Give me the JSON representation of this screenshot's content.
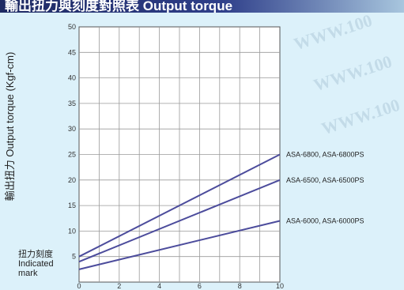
{
  "header": {
    "title": "輸出扭力與刻度對照表 Output torque"
  },
  "watermark": "WWW.100",
  "indicated_mark": {
    "zh": "扭力刻度",
    "en1": "Indicated",
    "en2": "mark"
  },
  "chart_data": {
    "type": "line",
    "title": "",
    "xlabel": "",
    "ylabel": "輸出扭力 Output torque (Kgf-cm)",
    "xlim": [
      0,
      10
    ],
    "ylim": [
      0,
      50
    ],
    "xticks": [
      0,
      2,
      4,
      6,
      8,
      10
    ],
    "yticks": [
      5,
      10,
      15,
      20,
      25,
      30,
      35,
      40,
      45,
      50
    ],
    "grid": true,
    "legend": "inline-right",
    "line_color": "#4c4c9c",
    "series": [
      {
        "name": "ASA-6800, ASA-6800PS",
        "x": [
          0,
          10
        ],
        "y": [
          5,
          25
        ]
      },
      {
        "name": "ASA-6500, ASA-6500PS",
        "x": [
          0,
          10
        ],
        "y": [
          4,
          20
        ]
      },
      {
        "name": "ASA-6000, ASA-6000PS",
        "x": [
          0,
          10
        ],
        "y": [
          2.5,
          12
        ]
      }
    ]
  }
}
